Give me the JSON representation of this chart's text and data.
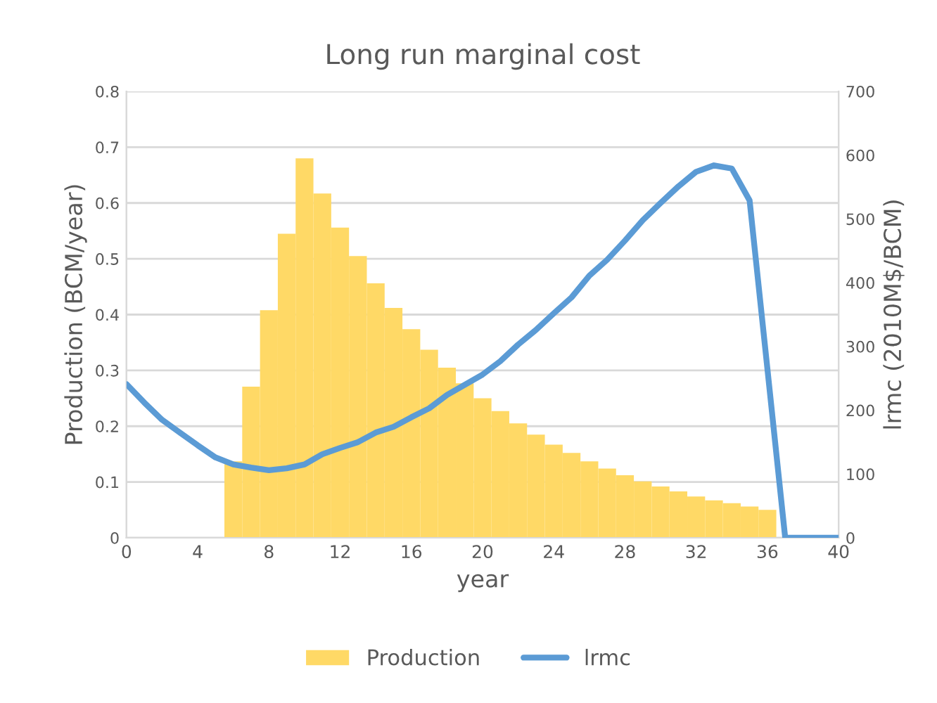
{
  "chart_data": {
    "type": "bar",
    "title": "Long run marginal cost",
    "xlabel": "year",
    "ylabel": "Production (BCM/year)",
    "y2label": "lrmc (2010M$/BCM)",
    "series": [
      {
        "name": "Production",
        "color": "#ffd966",
        "x": [
          6,
          7,
          8,
          9,
          10,
          11,
          12,
          13,
          14,
          15,
          16,
          17,
          18,
          19,
          20,
          21,
          22,
          23,
          24,
          25,
          26,
          27,
          28,
          29,
          30,
          31,
          32,
          33,
          34,
          35,
          36
        ],
        "values": [
          0.137,
          0.271,
          0.408,
          0.545,
          0.68,
          0.617,
          0.556,
          0.505,
          0.456,
          0.412,
          0.374,
          0.337,
          0.305,
          0.277,
          0.25,
          0.227,
          0.205,
          0.185,
          0.167,
          0.152,
          0.137,
          0.124,
          0.112,
          0.101,
          0.092,
          0.083,
          0.074,
          0.067,
          0.062,
          0.056,
          0.05
        ]
      },
      {
        "name": "lrmc",
        "type": "line",
        "axis": "y2",
        "color": "#5b9bd5",
        "x": [
          0,
          1,
          2,
          3,
          4,
          5,
          6,
          7,
          8,
          9,
          10,
          11,
          12,
          13,
          14,
          15,
          16,
          17,
          18,
          19,
          20,
          21,
          22,
          23,
          24,
          25,
          26,
          27,
          28,
          29,
          30,
          31,
          32,
          33,
          34,
          35,
          36,
          37,
          38,
          39,
          40
        ],
        "values": [
          241,
          212,
          185,
          165,
          145,
          126,
          115,
          110,
          106,
          109,
          115,
          131,
          141,
          150,
          165,
          174,
          189,
          203,
          224,
          240,
          256,
          277,
          303,
          326,
          352,
          377,
          411,
          436,
          466,
          498,
          525,
          551,
          574,
          584,
          579,
          529,
          265,
          0,
          0,
          0,
          0
        ]
      }
    ],
    "xlim": [
      0,
      40
    ],
    "xticks": [
      0,
      4,
      8,
      12,
      16,
      20,
      24,
      28,
      32,
      36,
      40
    ],
    "ylim": [
      0,
      0.8
    ],
    "yticks": [
      0,
      0.1,
      0.2,
      0.3,
      0.4,
      0.5,
      0.6,
      0.7,
      0.8
    ],
    "y2lim": [
      0,
      700
    ],
    "y2ticks": [
      0,
      100,
      200,
      300,
      400,
      500,
      600,
      700
    ],
    "grid": "y",
    "legend": "bottom",
    "marker": "none",
    "line_style": "solid"
  }
}
